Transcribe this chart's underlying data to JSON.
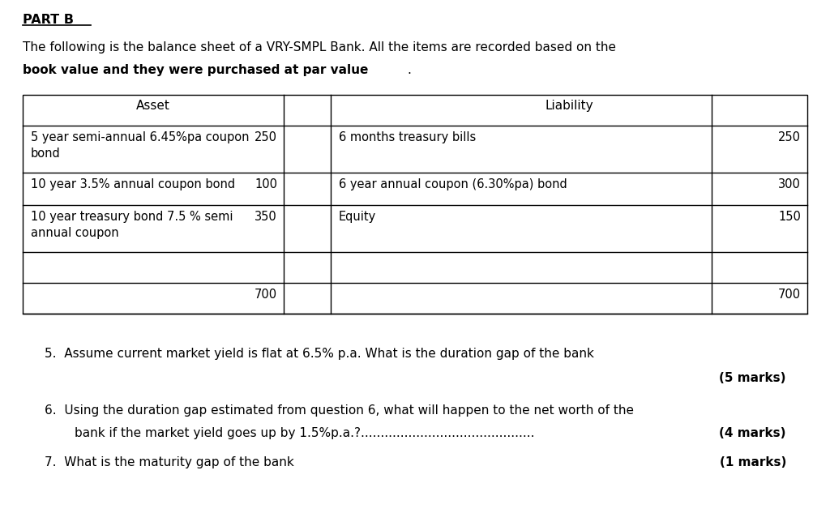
{
  "title": "PART B",
  "intro_line1": "The following is the balance sheet of a VRY-SMPL Bank. All the items are recorded based on the",
  "intro_line2_bold": "book value and they were purchased at par value",
  "intro_line2_end": ".",
  "header_asset": "Asset",
  "header_liability": "Liability",
  "rows": [
    {
      "asset_text": "5 year semi-annual 6.45%pa coupon\nbond",
      "asset_value": "250",
      "liability_text": "6 months treasury bills",
      "liability_value": "250"
    },
    {
      "asset_text": "10 year 3.5% annual coupon bond",
      "asset_value": "100",
      "liability_text": "6 year annual coupon (6.30%pa) bond",
      "liability_value": "300"
    },
    {
      "asset_text": "10 year treasury bond 7.5 % semi\nannual coupon",
      "asset_value": "350",
      "liability_text": "Equity",
      "liability_value": "150"
    },
    {
      "asset_text": "",
      "asset_value": "",
      "liability_text": "",
      "liability_value": ""
    },
    {
      "asset_text": "",
      "asset_value": "700",
      "liability_text": "",
      "liability_value": "700"
    }
  ],
  "q5": "5.  Assume current market yield is flat at 6.5% p.a. What is the duration gap of the bank",
  "q5_marks": "(5 marks)",
  "q6a": "6.  Using the duration gap estimated from question 6, what will happen to the net worth of the",
  "q6b": "bank if the market yield goes up by 1.5%p.a.?............................................",
  "q6_marks": "(4 marks)",
  "q7": "7.  What is the maturity gap of the bank",
  "q7_marks": "(1 marks)",
  "bg_color": "#ffffff",
  "text_color": "#000000"
}
